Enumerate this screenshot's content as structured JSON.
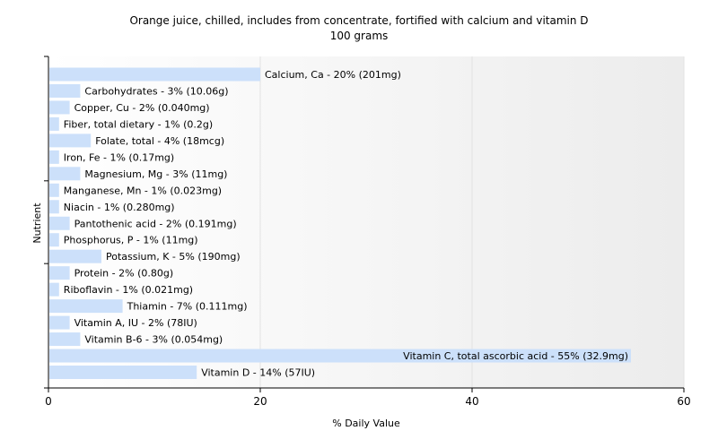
{
  "chart_data": {
    "type": "bar",
    "orientation": "horizontal",
    "title": "Orange juice, chilled, includes from concentrate, fortified with calcium and vitamin D",
    "subtitle": "100 grams",
    "xlabel": "% Daily Value",
    "ylabel": "Nutrient",
    "xlim": [
      0,
      60
    ],
    "xticks": [
      "0",
      "20",
      "40",
      "60"
    ],
    "grid": true,
    "bar_color": "#cce0fa",
    "categories": [
      "Calcium, Ca",
      "Carbohydrates",
      "Copper, Cu",
      "Fiber, total dietary",
      "Folate, total",
      "Iron, Fe",
      "Magnesium, Mg",
      "Manganese, Mn",
      "Niacin",
      "Pantothenic acid",
      "Phosphorus, P",
      "Potassium, K",
      "Protein",
      "Riboflavin",
      "Thiamin",
      "Vitamin A, IU",
      "Vitamin B-6",
      "Vitamin C, total ascorbic acid",
      "Vitamin D"
    ],
    "values": [
      20,
      3,
      2,
      1,
      4,
      1,
      3,
      1,
      1,
      2,
      1,
      5,
      2,
      1,
      7,
      2,
      3,
      55,
      14
    ],
    "amounts": [
      "201mg",
      "10.06g",
      "0.040mg",
      "0.2g",
      "18mcg",
      "0.17mg",
      "11mg",
      "0.023mg",
      "0.280mg",
      "0.191mg",
      "11mg",
      "190mg",
      "0.80g",
      "0.021mg",
      "0.111mg",
      "78IU",
      "0.054mg",
      "32.9mg",
      "57IU"
    ],
    "labels": [
      "Calcium, Ca - 20% (201mg)",
      "Carbohydrates - 3% (10.06g)",
      "Copper, Cu - 2% (0.040mg)",
      "Fiber, total dietary - 1% (0.2g)",
      "Folate, total - 4% (18mcg)",
      "Iron, Fe - 1% (0.17mg)",
      "Magnesium, Mg - 3% (11mg)",
      "Manganese, Mn - 1% (0.023mg)",
      "Niacin - 1% (0.280mg)",
      "Pantothenic acid - 2% (0.191mg)",
      "Phosphorus, P - 1% (11mg)",
      "Potassium, K - 5% (190mg)",
      "Protein - 2% (0.80g)",
      "Riboflavin - 1% (0.021mg)",
      "Thiamin - 7% (0.111mg)",
      "Vitamin A, IU - 2% (78IU)",
      "Vitamin B-6 - 3% (0.054mg)",
      "Vitamin C, total ascorbic acid - 55% (32.9mg)",
      "Vitamin D - 14% (57IU)"
    ]
  }
}
